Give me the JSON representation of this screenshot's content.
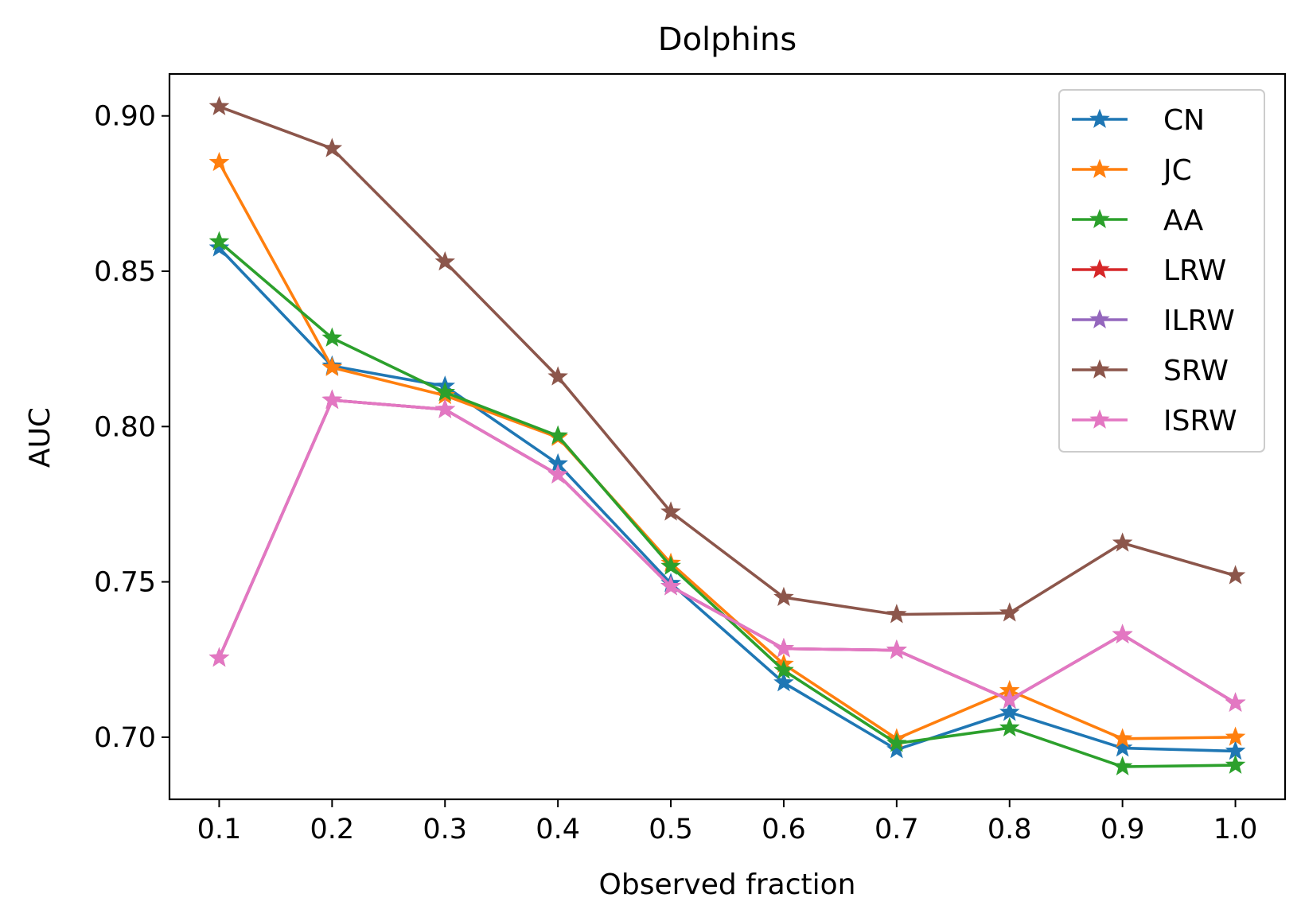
{
  "chart_data": {
    "type": "line",
    "title": "Dolphins",
    "xlabel": "Observed fraction",
    "ylabel": "AUC",
    "x": [
      0.1,
      0.2,
      0.3,
      0.4,
      0.5,
      0.6,
      0.7,
      0.8,
      0.9,
      1.0
    ],
    "x_tick_labels": [
      "0.1",
      "0.2",
      "0.3",
      "0.4",
      "0.5",
      "0.6",
      "0.7",
      "0.8",
      "0.9",
      "1.0"
    ],
    "y_ticks": [
      0.7,
      0.75,
      0.8,
      0.85,
      0.9
    ],
    "y_tick_labels": [
      "0.70",
      "0.75",
      "0.80",
      "0.85",
      "0.90"
    ],
    "xlim": [
      0.056,
      1.044
    ],
    "ylim": [
      0.68,
      0.9135
    ],
    "grid": false,
    "legend_position": "top-right",
    "marker": "star",
    "series": [
      {
        "name": "CN",
        "color": "#1f77b4",
        "values": [
          0.8575,
          0.8195,
          0.813,
          0.788,
          0.7495,
          0.7175,
          0.696,
          0.708,
          0.6965,
          0.6955
        ]
      },
      {
        "name": "JC",
        "color": "#ff7f0e",
        "values": [
          0.885,
          0.819,
          0.81,
          0.7965,
          0.756,
          0.7235,
          0.6995,
          0.715,
          0.6995,
          0.7
        ]
      },
      {
        "name": "AA",
        "color": "#2ca02c",
        "values": [
          0.8595,
          0.8285,
          0.811,
          0.797,
          0.755,
          0.7215,
          0.698,
          0.703,
          0.6905,
          0.691
        ]
      },
      {
        "name": "LRW",
        "color": "#d62728",
        "values": [
          0.7255,
          0.8085,
          0.8055,
          0.7845,
          0.7485,
          0.7285,
          0.728,
          0.712,
          0.733,
          0.711
        ]
      },
      {
        "name": "ILRW",
        "color": "#9467bd",
        "values": [
          0.7255,
          0.8085,
          0.8055,
          0.7845,
          0.7485,
          0.7285,
          0.728,
          0.712,
          0.733,
          0.711
        ]
      },
      {
        "name": "SRW",
        "color": "#8c564b",
        "values": [
          0.903,
          0.8895,
          0.853,
          0.816,
          0.7725,
          0.745,
          0.7395,
          0.74,
          0.7625,
          0.752
        ]
      },
      {
        "name": "ISRW",
        "color": "#e377c2",
        "values": [
          0.7255,
          0.8085,
          0.8055,
          0.7845,
          0.7485,
          0.7285,
          0.728,
          0.712,
          0.733,
          0.711
        ]
      }
    ]
  }
}
